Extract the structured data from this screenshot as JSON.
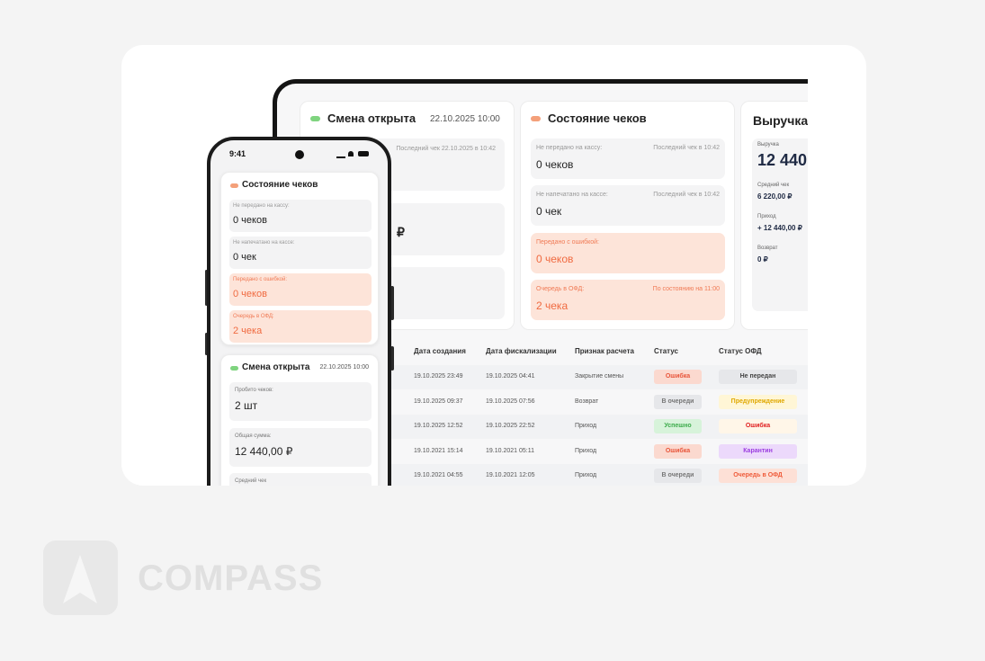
{
  "tablet": {
    "shift": {
      "title": "Смена открыта",
      "date": "22.10.2025 10:00",
      "last_check": "Последний чек 22.10.2025 в 10:42",
      "currency": "₽"
    },
    "receipts": {
      "title": "Состояние чеков",
      "rows": [
        {
          "label": "Не передано на кассу:",
          "note": "Последний чек в 10:42",
          "value": "0 чеков"
        },
        {
          "label": "Не напечатано на кассе:",
          "note": "Последний чек в 10:42",
          "value": "0 чек"
        },
        {
          "label": "Передано с ошибкой:",
          "value": "0 чеков"
        },
        {
          "label": "Очередь в ОФД:",
          "note": "По состоянию на 11:00",
          "value": "2 чека"
        }
      ]
    },
    "revenue": {
      "title": "Выручка",
      "items": [
        {
          "label": "Выручка",
          "value": "12 440,"
        },
        {
          "label": "Средний чек",
          "value": "6 220,00 ₽"
        },
        {
          "label": "Приход",
          "value": "+ 12 440,00 ₽"
        },
        {
          "label": "Возврат",
          "value": "0 ₽"
        }
      ]
    },
    "table": {
      "headers": [
        "Дата создания",
        "Дата фискализации",
        "Признак расчета",
        "Статус",
        "Статус ОФД"
      ],
      "rows": [
        [
          "19.10.2025 23:49",
          "19.10.2025 04:41",
          "Закрытие смены",
          "Ошибка",
          "Не передан"
        ],
        [
          "19.10.2025 09:37",
          "19.10.2025 07:56",
          "Возврат",
          "В очереди",
          "Предупреждение"
        ],
        [
          "19.10.2025 12:52",
          "19.10.2025 22:52",
          "Приход",
          "Успешно",
          "Ошибка"
        ],
        [
          "19.10.2021 15:14",
          "19.10.2021 05:11",
          "Приход",
          "Ошибка",
          "Карантин"
        ],
        [
          "19.10.2021 04:55",
          "19.10.2021 12:05",
          "Приход",
          "В очереди",
          "Очередь в ОФД"
        ]
      ]
    }
  },
  "phone": {
    "time": "9:41",
    "receipts": {
      "title": "Состояние чеков",
      "rows": [
        {
          "label": "Не передано на кассу:",
          "value": "0 чеков"
        },
        {
          "label": "Не напечатано на кассе:",
          "value": "0 чек"
        },
        {
          "label": "Передано с ошибкой:",
          "value": "0 чеков"
        },
        {
          "label": "Очередь в ОФД:",
          "value": "2 чека"
        }
      ]
    },
    "shift": {
      "title": "Смена открыта",
      "date": "22.10.2025 10:00",
      "rows": [
        {
          "label": "Пробито чеков:",
          "value": "2 шт"
        },
        {
          "label": "Общая сумма:",
          "value": "12 440,00 ₽"
        },
        {
          "label": "Средний чек"
        }
      ]
    }
  },
  "logo": {
    "text": "COMPASS"
  }
}
